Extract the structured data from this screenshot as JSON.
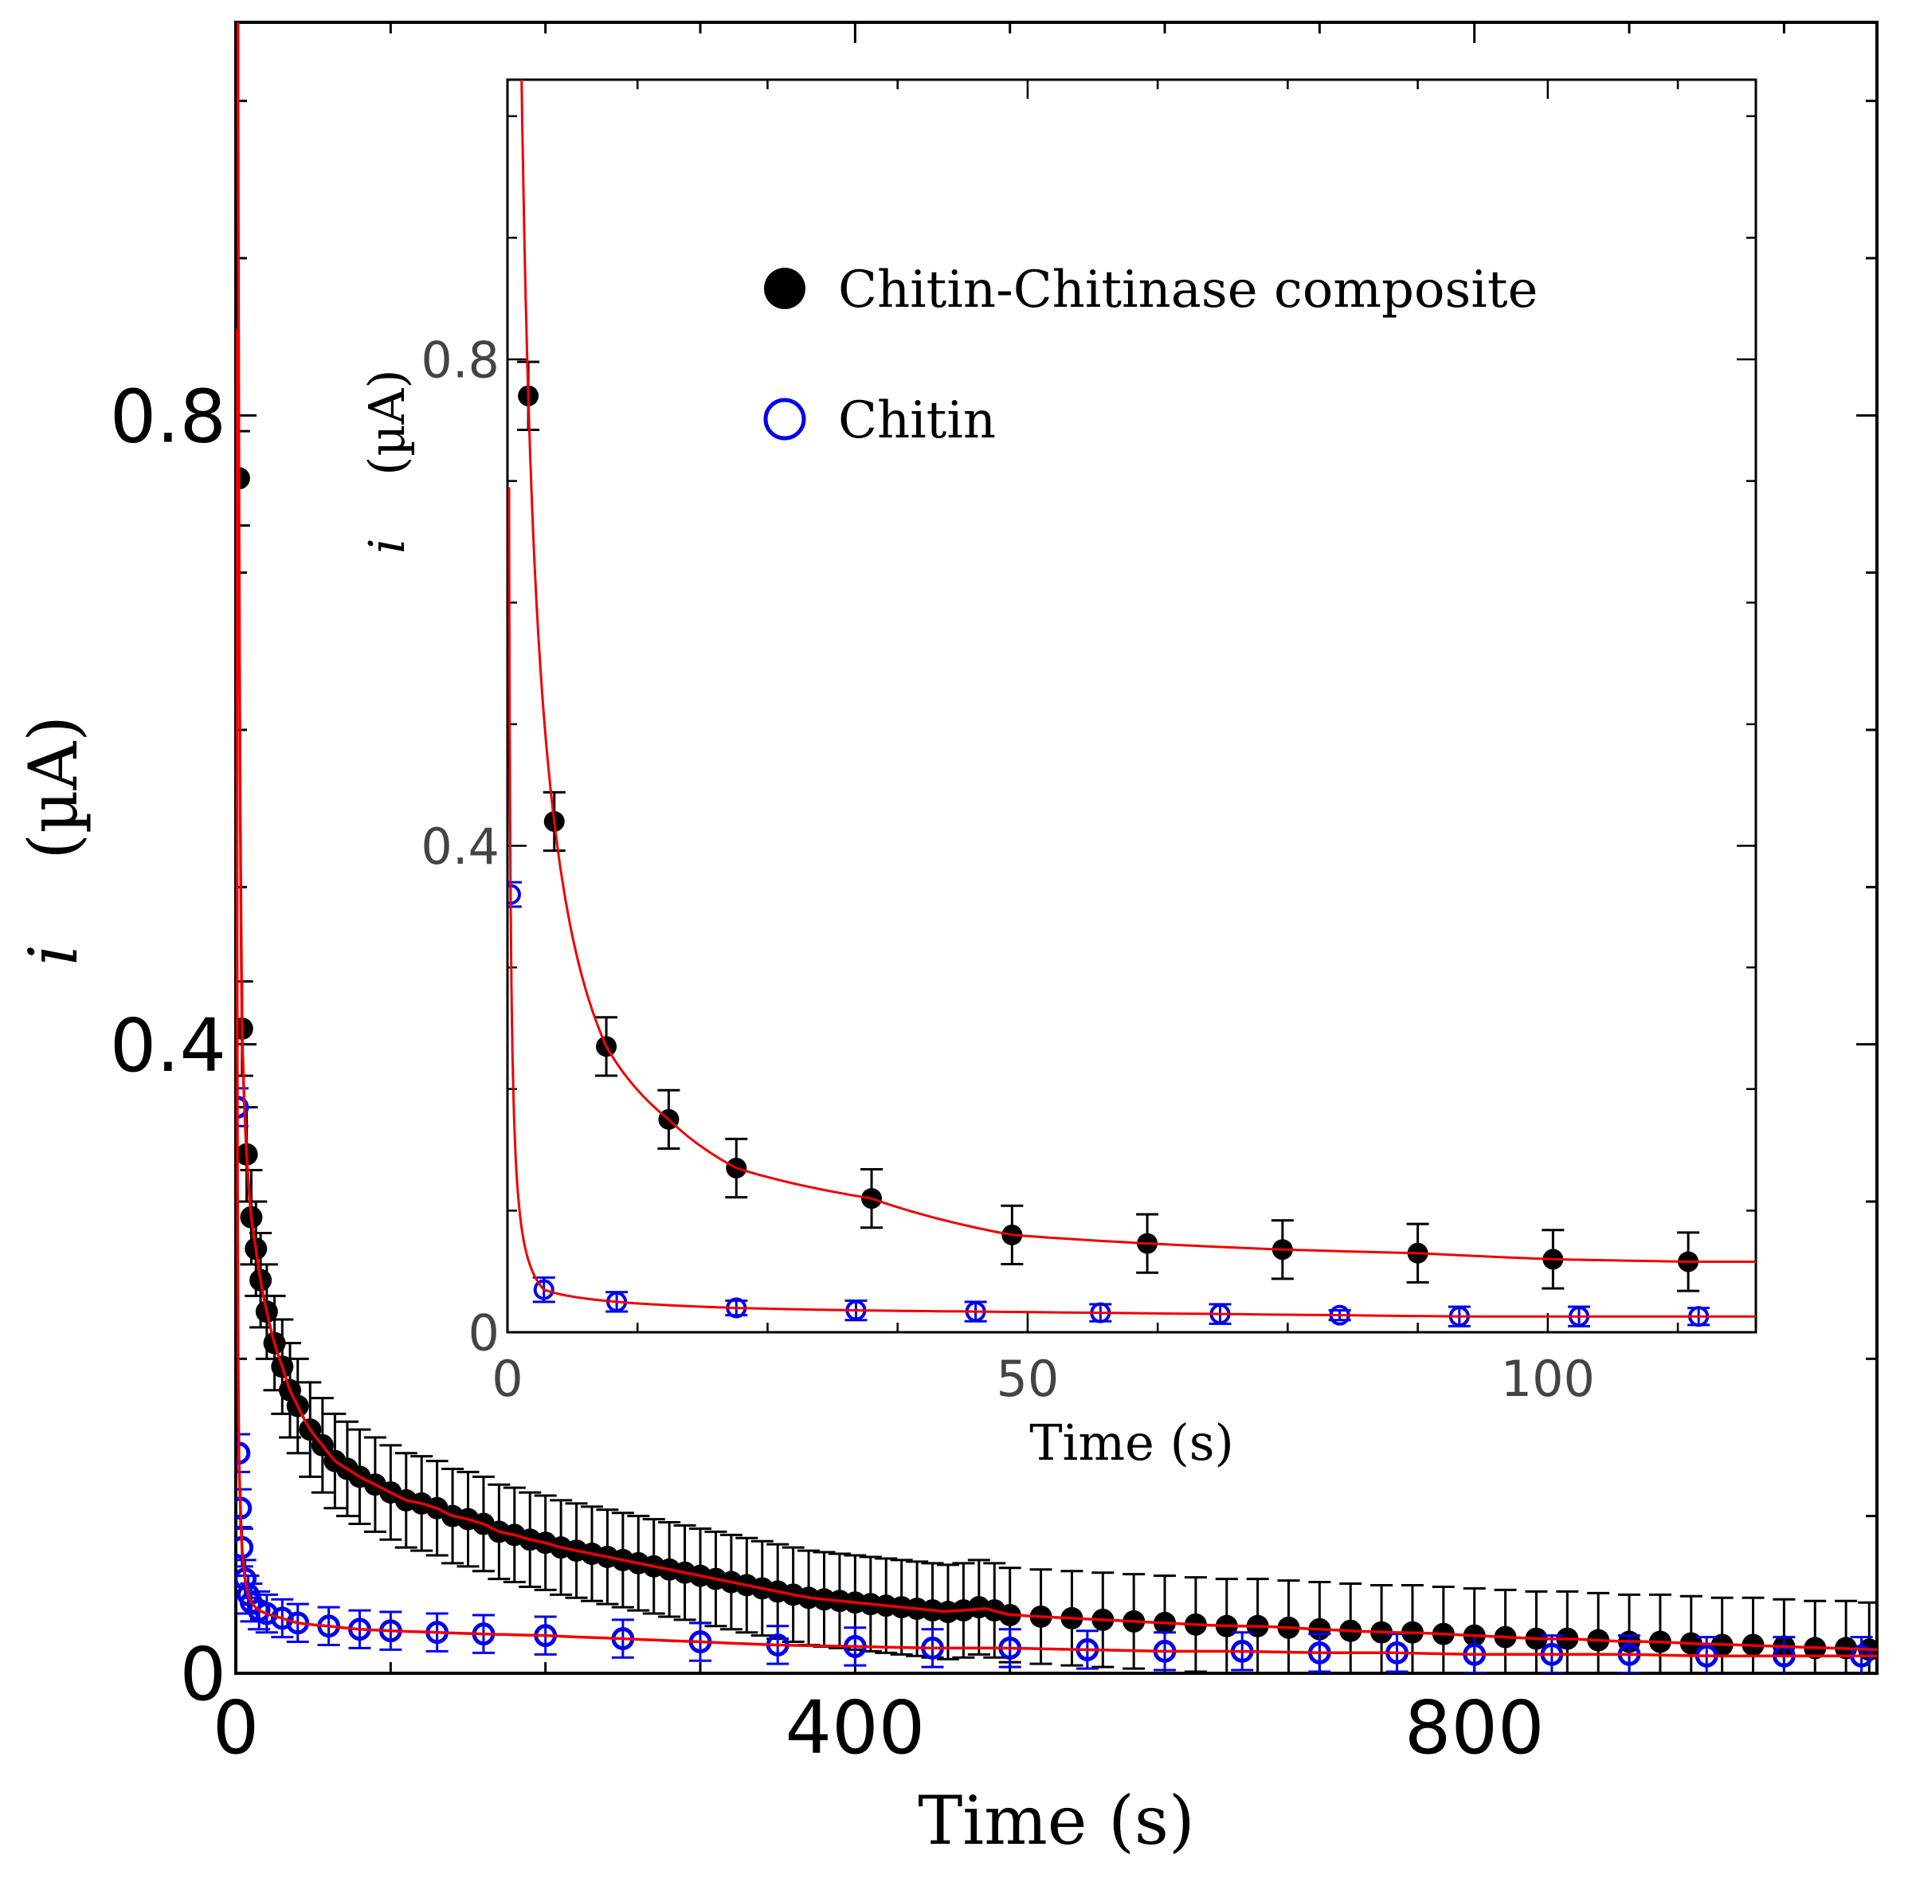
{
  "chart_data": [
    {
      "id": "main",
      "type": "scatter",
      "title": "",
      "xlabel": "Time (s)",
      "ylabel_symbol": "i",
      "ylabel_unit": "(µA)",
      "xlim": [
        0,
        1060
      ],
      "ylim": [
        0,
        1.05
      ],
      "x_ticks": [
        0,
        400,
        800
      ],
      "x_tick_labels": [
        "0",
        "400",
        "800"
      ],
      "y_ticks": [
        0,
        0.4,
        0.8
      ],
      "y_tick_labels": [
        "0",
        "0.4",
        "0.8"
      ],
      "grid": false,
      "series": [
        {
          "name": "Chitin-Chitinase composite",
          "marker": "filled-circle",
          "color": "#000000",
          "x": [
            2,
            4,
            7,
            10,
            13,
            16,
            20,
            25,
            30,
            35,
            40,
            48,
            56,
            64,
            72,
            80,
            90,
            100,
            110,
            120,
            130,
            140,
            150,
            160,
            170,
            180,
            190,
            200,
            210,
            220,
            230,
            240,
            250,
            260,
            270,
            280,
            290,
            300,
            310,
            320,
            330,
            340,
            350,
            360,
            370,
            380,
            390,
            400,
            410,
            420,
            430,
            440,
            450,
            460,
            470,
            480,
            490,
            500,
            520,
            540,
            560,
            580,
            600,
            620,
            640,
            660,
            680,
            700,
            720,
            740,
            760,
            780,
            800,
            820,
            840,
            860,
            880,
            900,
            920,
            940,
            960,
            980,
            1000,
            1020,
            1040,
            1055
          ],
          "y": [
            0.76,
            0.41,
            0.33,
            0.29,
            0.27,
            0.25,
            0.23,
            0.21,
            0.195,
            0.18,
            0.17,
            0.155,
            0.145,
            0.135,
            0.13,
            0.125,
            0.12,
            0.115,
            0.11,
            0.108,
            0.105,
            0.1,
            0.098,
            0.095,
            0.09,
            0.088,
            0.085,
            0.083,
            0.08,
            0.078,
            0.076,
            0.074,
            0.072,
            0.07,
            0.068,
            0.066,
            0.064,
            0.062,
            0.06,
            0.058,
            0.056,
            0.054,
            0.052,
            0.05,
            0.048,
            0.047,
            0.046,
            0.045,
            0.044,
            0.043,
            0.042,
            0.041,
            0.04,
            0.039,
            0.04,
            0.042,
            0.04,
            0.037,
            0.036,
            0.035,
            0.034,
            0.033,
            0.032,
            0.031,
            0.03,
            0.03,
            0.029,
            0.028,
            0.027,
            0.026,
            0.026,
            0.025,
            0.024,
            0.023,
            0.022,
            0.022,
            0.021,
            0.02,
            0.02,
            0.019,
            0.018,
            0.018,
            0.017,
            0.016,
            0.016,
            0.015
          ],
          "yerr": 0.03
        },
        {
          "name": "Chitin",
          "marker": "open-circle",
          "color": "#0000ee",
          "x": [
            1,
            2,
            3,
            4,
            6,
            8,
            10,
            15,
            20,
            30,
            40,
            60,
            80,
            100,
            130,
            160,
            200,
            250,
            300,
            350,
            400,
            450,
            500,
            550,
            600,
            650,
            700,
            750,
            800,
            850,
            900,
            950,
            1000,
            1050
          ],
          "y": [
            0.36,
            0.14,
            0.105,
            0.08,
            0.06,
            0.05,
            0.045,
            0.04,
            0.038,
            0.035,
            0.032,
            0.03,
            0.028,
            0.027,
            0.026,
            0.025,
            0.024,
            0.022,
            0.02,
            0.018,
            0.017,
            0.016,
            0.016,
            0.015,
            0.014,
            0.014,
            0.013,
            0.013,
            0.012,
            0.012,
            0.012,
            0.011,
            0.011,
            0.011
          ],
          "yerr": 0.012
        }
      ],
      "fit_color": "#ee0000"
    },
    {
      "id": "inset",
      "type": "scatter",
      "title": "",
      "xlabel": "Time (s)",
      "ylabel_symbol": "i",
      "ylabel_unit": "(µA)",
      "xlim": [
        0,
        120
      ],
      "ylim": [
        0,
        1.03
      ],
      "x_ticks": [
        0,
        50,
        100
      ],
      "x_tick_labels": [
        "0",
        "50",
        "100"
      ],
      "y_ticks": [
        0,
        0.4,
        0.8
      ],
      "y_tick_labels": [
        "0",
        "0.4",
        "0.8"
      ],
      "grid": false,
      "legend_position": "top-right",
      "series": [
        {
          "name": "Chitin-Chitinase composite",
          "marker": "filled-circle",
          "color": "#000000",
          "x": [
            2,
            4.5,
            9.5,
            15.5,
            22,
            35,
            48.5,
            61.5,
            74.5,
            87.5,
            100.5,
            113.5
          ],
          "y": [
            0.77,
            0.42,
            0.235,
            0.175,
            0.135,
            0.11,
            0.08,
            0.073,
            0.068,
            0.065,
            0.06,
            0.058
          ],
          "yerr": [
            0.028,
            0.024,
            0.024,
            0.024,
            0.024,
            0.024,
            0.024,
            0.024,
            0.024,
            0.024,
            0.024,
            0.024
          ]
        },
        {
          "name": "Chitin",
          "marker": "open-circle",
          "color": "#0000ee",
          "x": [
            0.3,
            3.5,
            10.5,
            22,
            33.5,
            45,
            57,
            68.5,
            80,
            91.5,
            103,
            114.5
          ],
          "y": [
            0.36,
            0.035,
            0.025,
            0.02,
            0.018,
            0.017,
            0.016,
            0.015,
            0.014,
            0.013,
            0.013,
            0.013
          ],
          "yerr": [
            0.01,
            0.01,
            0.008,
            0.006,
            0.008,
            0.008,
            0.007,
            0.008,
            0.004,
            0.008,
            0.008,
            0.007
          ]
        }
      ],
      "fit_color": "#ee0000"
    }
  ],
  "legend": {
    "items": [
      {
        "label": "Chitin-Chitinase composite",
        "marker": "filled-circle",
        "color": "#000000"
      },
      {
        "label": "Chitin",
        "marker": "open-circle",
        "color": "#0000ee"
      }
    ]
  }
}
